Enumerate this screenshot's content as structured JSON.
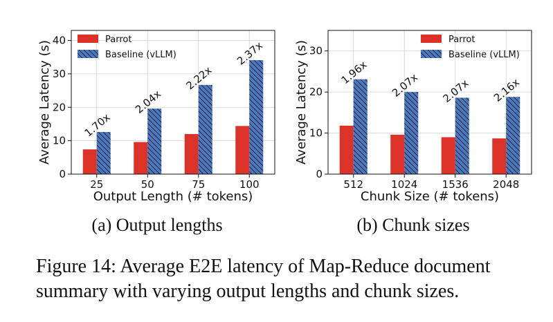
{
  "figure": {
    "caption": "Figure 14: Average E2E latency of Map-Reduce document summary with varying output lengths and chunk sizes."
  },
  "chart_data": [
    {
      "type": "bar",
      "subcaption": "(a) Output lengths",
      "xlabel": "Output Length (# tokens)",
      "ylabel": "Average Latency (s)",
      "categories": [
        "25",
        "50",
        "75",
        "100"
      ],
      "ylim": [
        0,
        43
      ],
      "yticks": [
        0,
        10,
        20,
        30,
        40
      ],
      "grid": true,
      "legend_position": "top-left",
      "series": [
        {
          "name": "Parrot",
          "color": "#dc3228",
          "hatch": false,
          "values": [
            7.4,
            9.6,
            12.0,
            14.4
          ]
        },
        {
          "name": "Baseline (vLLM)",
          "color": "#4a78c2",
          "hatch": true,
          "values": [
            12.6,
            19.6,
            26.7,
            34.1
          ]
        }
      ],
      "annotations": [
        "1.70x",
        "2.04x",
        "2.22x",
        "2.37x"
      ]
    },
    {
      "type": "bar",
      "subcaption": "(b) Chunk sizes",
      "xlabel": "Chunk Size (# tokens)",
      "ylabel": "Average Latency (s)",
      "categories": [
        "512",
        "1024",
        "1536",
        "2048"
      ],
      "ylim": [
        0,
        35
      ],
      "yticks": [
        0,
        10,
        20,
        30
      ],
      "grid": true,
      "legend_position": "top-right",
      "series": [
        {
          "name": "Parrot",
          "color": "#dc3228",
          "hatch": false,
          "values": [
            11.8,
            9.6,
            9.0,
            8.7
          ]
        },
        {
          "name": "Baseline (vLLM)",
          "color": "#4a78c2",
          "hatch": true,
          "values": [
            23.1,
            20.0,
            18.6,
            18.8
          ]
        }
      ],
      "annotations": [
        "1.96x",
        "2.07x",
        "2.07x",
        "2.16x"
      ]
    }
  ]
}
